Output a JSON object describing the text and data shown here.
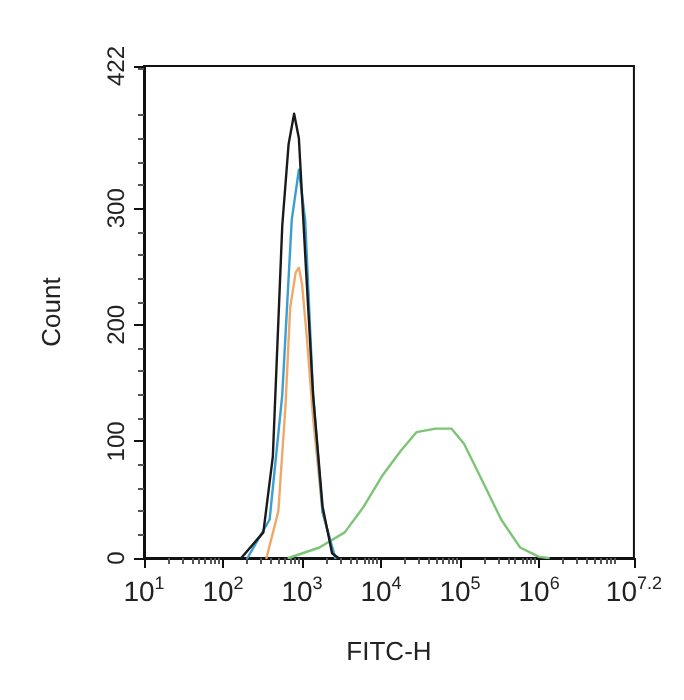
{
  "chart_data": {
    "type": "line",
    "xlabel": "FITC-H",
    "ylabel": "Count",
    "log": "x",
    "grid": false,
    "marker": "none",
    "line_style": "solid",
    "xlim": [
      10,
      15848932
    ],
    "xticks": [
      {
        "value": 10,
        "label": "10$^{1}$"
      },
      {
        "value": 100,
        "label": "10$^{2}$"
      },
      {
        "value": 1000,
        "label": "10$^{3}$"
      },
      {
        "value": 10000,
        "label": "10$^{4}$"
      },
      {
        "value": 100000,
        "label": "10$^{5}$"
      },
      {
        "value": 1000000,
        "label": "10$^{6}$"
      },
      {
        "value": 15848932,
        "label": "10$^{7.2}$"
      }
    ],
    "ylim": [
      0,
      422
    ],
    "yticks": [
      0,
      100,
      200,
      300,
      422
    ],
    "series": [
      {
        "color": "#f0a868",
        "x": [
          355,
          501,
          617,
          708,
          832,
          912,
          1000,
          1148,
          1380,
          1820,
          2630
        ],
        "values": [
          0,
          40,
          130,
          215,
          245,
          249,
          235,
          190,
          120,
          39,
          0
        ]
      },
      {
        "color": "#7cc576",
        "x": [
          676,
          1660,
          3467,
          6026,
          10471,
          17783,
          28184,
          48978,
          77625,
          112202,
          194984,
          331131,
          575440,
          1000000,
          1318257
        ],
        "values": [
          0,
          9,
          22,
          44,
          71,
          92,
          108,
          111,
          111,
          98,
          65,
          33,
          9,
          1,
          0
        ]
      },
      {
        "color": "#3a9fd0",
        "x": [
          204,
          389,
          562,
          741,
          912,
          1096,
          1380,
          1820,
          2630
        ],
        "values": [
          0,
          33,
          140,
          290,
          333,
          290,
          140,
          39,
          0
        ]
      },
      {
        "color": "#1a1a1a",
        "x": [
          170,
          324,
          427,
          562,
          676,
          794,
          912,
          1122,
          1380,
          1820,
          2399,
          2884
        ],
        "values": [
          0,
          22,
          87,
          285,
          355,
          381,
          360,
          248,
          140,
          44,
          4,
          0
        ]
      }
    ]
  }
}
